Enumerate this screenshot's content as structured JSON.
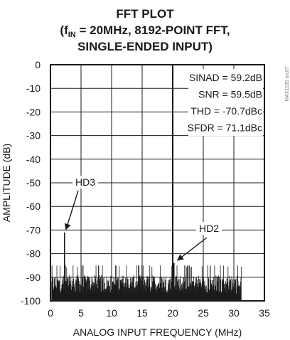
{
  "chart_data": {
    "type": "line",
    "title_lines": [
      {
        "pre": "FFT PLOT",
        "sub": "",
        "post": ""
      },
      {
        "pre": "(f",
        "sub": "IN",
        "post": " = 20MHz, 8192-POINT FFT,"
      },
      {
        "pre": "SINGLE-ENDED INPUT)",
        "sub": "",
        "post": ""
      }
    ],
    "xlabel": "ANALOG INPUT FREQUENCY (MHz)",
    "ylabel": "AMPLITUDE (dB)",
    "xlim": [
      0,
      35
    ],
    "ylim": [
      -100,
      0
    ],
    "xticks": [
      0,
      5,
      10,
      15,
      20,
      25,
      30,
      35
    ],
    "yticks": [
      0,
      -10,
      -20,
      -30,
      -40,
      -50,
      -60,
      -70,
      -80,
      -90,
      -100
    ],
    "grid": true,
    "series": [
      {
        "noise_floor": {
          "x_start": 0.2,
          "x_end": 31.2,
          "mean_dB": -93,
          "peak_dB": -86
        },
        "peaks": [
          {
            "x": 20.0,
            "y": 0
          },
          {
            "x": 2.3,
            "y": -71
          },
          {
            "x": 20.2,
            "y": -84
          }
        ]
      }
    ],
    "legend": {
      "position": "top-right",
      "entries": [
        "SINAD = 59.2dB",
        "SNR = 59.5dB",
        "THD = -70.7dBc",
        "SFDR = 71.1dBc"
      ]
    },
    "annotations": [
      {
        "text": "HD3",
        "target_x": 2.3,
        "target_y": -71
      },
      {
        "text": "HD2",
        "target_x": 20.2,
        "target_y": -84
      }
    ],
    "side_code": "MAX1185 toc07",
    "colors": {
      "ink": "#1a1a1a",
      "grid": "#1a1a1a",
      "background": "#ffffff"
    }
  }
}
